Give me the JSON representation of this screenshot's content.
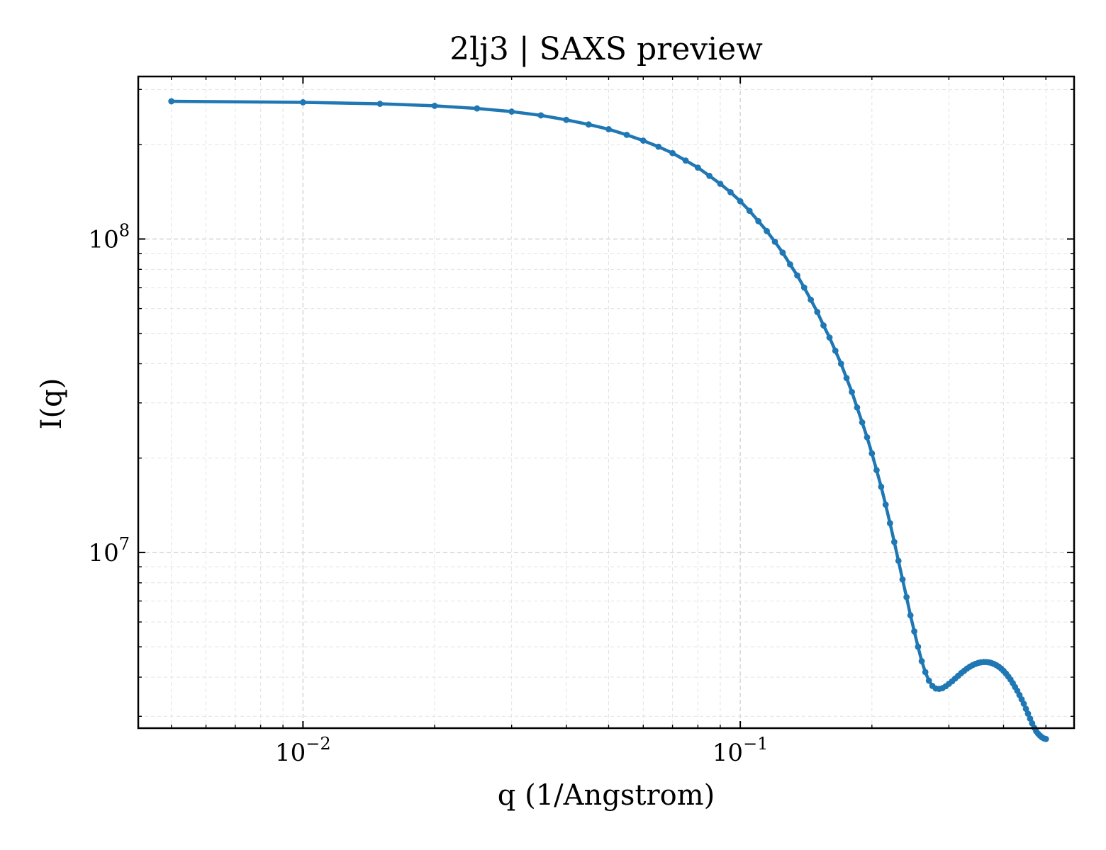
{
  "chart_data": {
    "type": "line",
    "title": "2lj3 | SAXS preview",
    "xlabel": "q (1/Angstrom)",
    "ylabel": "I(q)",
    "xscale": "log",
    "yscale": "log",
    "xlim": [
      0.0042,
      0.58
    ],
    "ylim": [
      2750000.0,
      330000000.0
    ],
    "x_ticks": [
      {
        "value": 0.01,
        "base": "10",
        "exp": "−2"
      },
      {
        "value": 0.1,
        "base": "10",
        "exp": "−1"
      }
    ],
    "y_ticks": [
      {
        "value": 10000000,
        "base": "10",
        "exp": "7"
      },
      {
        "value": 100000000,
        "base": "10",
        "exp": "8"
      }
    ],
    "grid": true,
    "marker": "circle",
    "series_color": "#1f77b4",
    "series": [
      {
        "x": [
          0.005,
          0.01,
          0.015,
          0.02,
          0.025,
          0.03,
          0.035,
          0.04,
          0.045,
          0.05,
          0.055,
          0.06,
          0.065,
          0.07,
          0.075,
          0.08,
          0.085,
          0.09,
          0.095,
          0.1,
          0.105,
          0.11,
          0.115,
          0.12,
          0.125,
          0.13,
          0.135,
          0.14,
          0.145,
          0.15,
          0.155,
          0.16,
          0.165,
          0.17,
          0.175,
          0.18,
          0.185,
          0.19,
          0.195,
          0.2,
          0.205,
          0.21,
          0.215,
          0.22,
          0.225,
          0.23,
          0.235,
          0.24,
          0.245,
          0.25,
          0.255,
          0.26,
          0.265,
          0.27,
          0.275,
          0.28,
          0.285,
          0.29,
          0.295,
          0.3,
          0.305,
          0.31,
          0.315,
          0.32,
          0.325,
          0.33,
          0.335,
          0.34,
          0.345,
          0.35,
          0.355,
          0.36,
          0.365,
          0.37,
          0.375,
          0.38,
          0.385,
          0.39,
          0.395,
          0.4,
          0.405,
          0.41,
          0.415,
          0.42,
          0.425,
          0.43,
          0.435,
          0.44,
          0.445,
          0.45,
          0.455,
          0.46,
          0.465,
          0.47,
          0.475,
          0.48,
          0.485,
          0.49,
          0.495,
          0.5
        ],
        "y": [
          275000000,
          273000000,
          270000000,
          266000000,
          261000000,
          255000000,
          248000000,
          240000000,
          232000000,
          224000000,
          215000000,
          206000000,
          197000000,
          188000000,
          178000000,
          169000000,
          159000000,
          150000000,
          141000000,
          132000000,
          123000000,
          114000000,
          106000000,
          98000000,
          90500000,
          83000000,
          76500000,
          70000000,
          64000000,
          58500000,
          53000000,
          48500000,
          44000000,
          40000000,
          36000000,
          32500000,
          29000000,
          26000000,
          23300000,
          20700000,
          18300000,
          16200000,
          14200000,
          12400000,
          10800000,
          9400000,
          8200000,
          7200000,
          6300000,
          5600000,
          5000000,
          4500000,
          4150000,
          3900000,
          3750000,
          3680000,
          3670000,
          3690000,
          3740000,
          3810000,
          3880000,
          3960000,
          4040000,
          4120000,
          4190000,
          4260000,
          4320000,
          4370000,
          4410000,
          4440000,
          4460000,
          4470000,
          4470000,
          4460000,
          4440000,
          4410000,
          4370000,
          4320000,
          4260000,
          4190000,
          4110000,
          4020000,
          3930000,
          3830000,
          3720000,
          3620000,
          3510000,
          3400000,
          3290000,
          3170000,
          3060000,
          2950000,
          2850000,
          2760000,
          2690000,
          2640000,
          2600000,
          2570000,
          2550000,
          2540000
        ]
      }
    ]
  }
}
